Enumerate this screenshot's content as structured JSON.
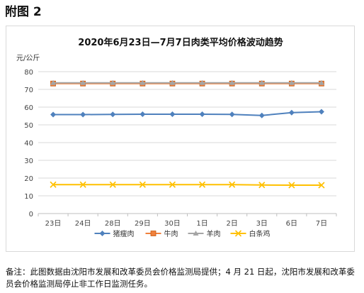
{
  "page": {
    "heading": "附图 2",
    "note": "备注：此图数据由沈阳市发展和改革委员会价格监测局提供；4 月 21 日起，沈阳市发展和改革委员会价格监测局停止非工作日监测任务。"
  },
  "chart_data": {
    "type": "line",
    "title": "2020年6月23日—7月7日肉类平均价格波动趋势",
    "ylabel": "元/公斤",
    "xlabel": "",
    "ylim": [
      0,
      80
    ],
    "yticks": [
      0,
      10,
      20,
      30,
      40,
      50,
      60,
      70,
      80
    ],
    "grid": true,
    "legend_position": "bottom",
    "categories": [
      "23日",
      "24日",
      "28日",
      "29日",
      "30日",
      "1日",
      "2日",
      "3日",
      "6日",
      "7日"
    ],
    "series": [
      {
        "name": "猪瘦肉",
        "color": "#4f81bd",
        "marker": "diamond",
        "values": [
          55.8,
          55.8,
          55.9,
          56.0,
          56.0,
          56.0,
          55.9,
          55.3,
          56.9,
          57.4
        ]
      },
      {
        "name": "牛肉",
        "color": "#f0803c",
        "marker": "square",
        "values": [
          73.3,
          73.3,
          73.3,
          73.3,
          73.3,
          73.3,
          73.3,
          73.3,
          73.3,
          73.3
        ]
      },
      {
        "name": "羊肉",
        "color": "#a5a5a5",
        "marker": "triangle",
        "values": [
          73.7,
          73.7,
          73.7,
          73.7,
          73.7,
          73.7,
          73.7,
          73.7,
          73.7,
          73.7
        ]
      },
      {
        "name": "白条鸡",
        "color": "#ffc000",
        "marker": "x",
        "values": [
          16.3,
          16.3,
          16.3,
          16.3,
          16.3,
          16.3,
          16.3,
          16.1,
          16.0,
          16.0
        ]
      }
    ]
  }
}
